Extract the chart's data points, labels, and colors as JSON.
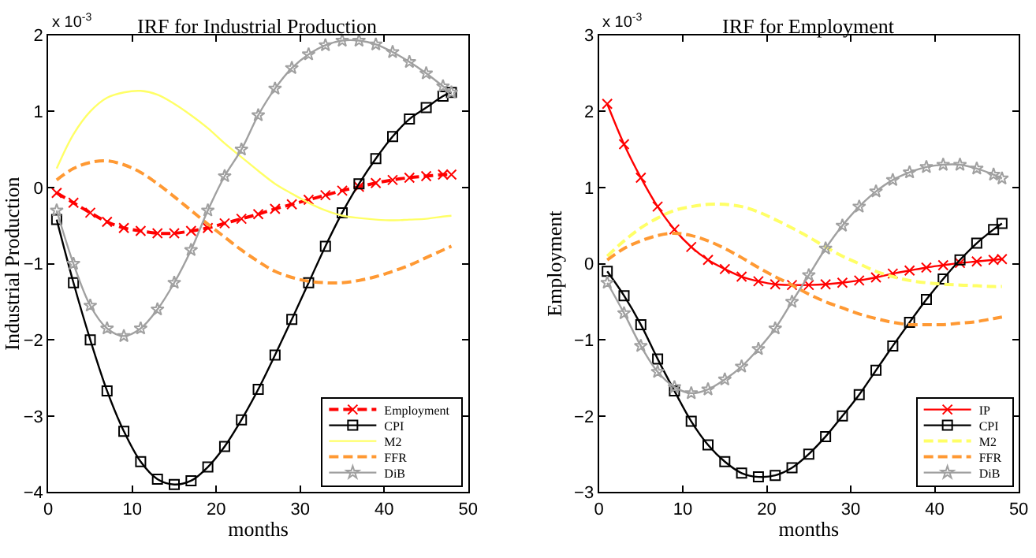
{
  "chart_data": [
    {
      "type": "line",
      "title": "IRF for Industrial Production",
      "xlabel": "months",
      "ylabel": "Industrial Production",
      "annotations": [
        "x 10$^{-3}$"
      ],
      "x": [
        1,
        3,
        5,
        7,
        9,
        11,
        13,
        15,
        17,
        19,
        21,
        23,
        25,
        27,
        29,
        31,
        33,
        35,
        37,
        39,
        41,
        43,
        45,
        47,
        48
      ],
      "xlim": [
        0,
        50
      ],
      "xticks": [
        0,
        10,
        20,
        30,
        40,
        50
      ],
      "ylim": [
        -4,
        2
      ],
      "yticks": [
        -4,
        -3,
        -2,
        -1,
        0,
        1,
        2
      ],
      "legend": "bottom right",
      "series": [
        {
          "name": "Employment",
          "color": "#ff0000",
          "line_style": "dashed",
          "marker": "cross",
          "values": [
            -0.07,
            -0.2,
            -0.33,
            -0.45,
            -0.53,
            -0.57,
            -0.6,
            -0.6,
            -0.57,
            -0.53,
            -0.47,
            -0.41,
            -0.35,
            -0.28,
            -0.22,
            -0.16,
            -0.1,
            -0.04,
            0.01,
            0.06,
            0.1,
            0.13,
            0.15,
            0.17,
            0.17
          ]
        },
        {
          "name": "CPI",
          "color": "#000000",
          "line_style": "solid",
          "marker": "square",
          "values": [
            -0.42,
            -1.25,
            -2.0,
            -2.67,
            -3.2,
            -3.6,
            -3.83,
            -3.9,
            -3.85,
            -3.67,
            -3.4,
            -3.05,
            -2.65,
            -2.2,
            -1.73,
            -1.25,
            -0.77,
            -0.33,
            0.05,
            0.38,
            0.67,
            0.9,
            1.05,
            1.2,
            1.25
          ]
        },
        {
          "name": "M2",
          "color": "#ffff66",
          "line_style": "solid",
          "marker": "none",
          "values": [
            0.25,
            0.7,
            1.0,
            1.18,
            1.25,
            1.27,
            1.22,
            1.1,
            0.95,
            0.78,
            0.58,
            0.4,
            0.22,
            0.05,
            -0.08,
            -0.2,
            -0.3,
            -0.37,
            -0.4,
            -0.42,
            -0.43,
            -0.42,
            -0.41,
            -0.38,
            -0.37
          ]
        },
        {
          "name": "FFR",
          "color": "#ff9933",
          "line_style": "dashed",
          "marker": "none",
          "values": [
            0.1,
            0.25,
            0.33,
            0.35,
            0.3,
            0.2,
            0.05,
            -0.12,
            -0.3,
            -0.48,
            -0.65,
            -0.82,
            -0.97,
            -1.1,
            -1.18,
            -1.23,
            -1.25,
            -1.25,
            -1.22,
            -1.17,
            -1.1,
            -1.02,
            -0.92,
            -0.82,
            -0.77
          ]
        },
        {
          "name": "DiB",
          "color": "#a0a0a0",
          "line_style": "solid",
          "marker": "star",
          "values": [
            -0.3,
            -1.0,
            -1.55,
            -1.85,
            -1.95,
            -1.85,
            -1.6,
            -1.25,
            -0.82,
            -0.3,
            0.15,
            0.5,
            0.95,
            1.3,
            1.57,
            1.75,
            1.87,
            1.93,
            1.93,
            1.88,
            1.78,
            1.65,
            1.5,
            1.33,
            1.25
          ]
        }
      ]
    },
    {
      "type": "line",
      "title": "IRF for Employment",
      "xlabel": "months",
      "ylabel": "Employment",
      "annotations": [
        "x 10$^{-3}$"
      ],
      "x": [
        1,
        3,
        5,
        7,
        9,
        11,
        13,
        15,
        17,
        19,
        21,
        23,
        25,
        27,
        29,
        31,
        33,
        35,
        37,
        39,
        41,
        43,
        45,
        47,
        48
      ],
      "xlim": [
        0,
        50
      ],
      "xticks": [
        0,
        10,
        20,
        30,
        40,
        50
      ],
      "ylim": [
        -3,
        3
      ],
      "yticks": [
        -3,
        -2,
        -1,
        0,
        1,
        2,
        3
      ],
      "legend": "bottom right",
      "series": [
        {
          "name": "IP",
          "color": "#ff0000",
          "line_style": "solid",
          "marker": "cross",
          "values": [
            2.1,
            1.57,
            1.13,
            0.75,
            0.45,
            0.22,
            0.05,
            -0.07,
            -0.17,
            -0.23,
            -0.27,
            -0.28,
            -0.28,
            -0.27,
            -0.25,
            -0.22,
            -0.18,
            -0.13,
            -0.09,
            -0.05,
            -0.02,
            0.01,
            0.03,
            0.05,
            0.06
          ]
        },
        {
          "name": "CPI",
          "color": "#000000",
          "line_style": "solid",
          "marker": "square",
          "values": [
            -0.1,
            -0.42,
            -0.8,
            -1.25,
            -1.67,
            -2.07,
            -2.38,
            -2.6,
            -2.75,
            -2.8,
            -2.78,
            -2.68,
            -2.5,
            -2.27,
            -2.0,
            -1.72,
            -1.4,
            -1.08,
            -0.77,
            -0.47,
            -0.2,
            0.05,
            0.27,
            0.45,
            0.53
          ]
        },
        {
          "name": "M2",
          "color": "#ffff66",
          "line_style": "dashed",
          "marker": "none",
          "values": [
            0.1,
            0.3,
            0.47,
            0.6,
            0.7,
            0.75,
            0.78,
            0.78,
            0.75,
            0.68,
            0.58,
            0.47,
            0.35,
            0.22,
            0.1,
            0.0,
            -0.1,
            -0.17,
            -0.22,
            -0.25,
            -0.27,
            -0.28,
            -0.29,
            -0.3,
            -0.3
          ]
        },
        {
          "name": "FFR",
          "color": "#ff9933",
          "line_style": "dashed",
          "marker": "none",
          "values": [
            0.05,
            0.2,
            0.3,
            0.37,
            0.4,
            0.37,
            0.3,
            0.2,
            0.08,
            -0.05,
            -0.17,
            -0.28,
            -0.4,
            -0.5,
            -0.58,
            -0.66,
            -0.72,
            -0.77,
            -0.8,
            -0.8,
            -0.8,
            -0.78,
            -0.76,
            -0.72,
            -0.7
          ]
        },
        {
          "name": "DiB",
          "color": "#a0a0a0",
          "line_style": "solid",
          "marker": "star",
          "values": [
            -0.25,
            -0.65,
            -1.08,
            -1.42,
            -1.62,
            -1.7,
            -1.65,
            -1.52,
            -1.35,
            -1.12,
            -0.85,
            -0.5,
            -0.15,
            0.2,
            0.5,
            0.75,
            0.95,
            1.1,
            1.2,
            1.27,
            1.3,
            1.3,
            1.25,
            1.17,
            1.12
          ]
        }
      ]
    }
  ]
}
